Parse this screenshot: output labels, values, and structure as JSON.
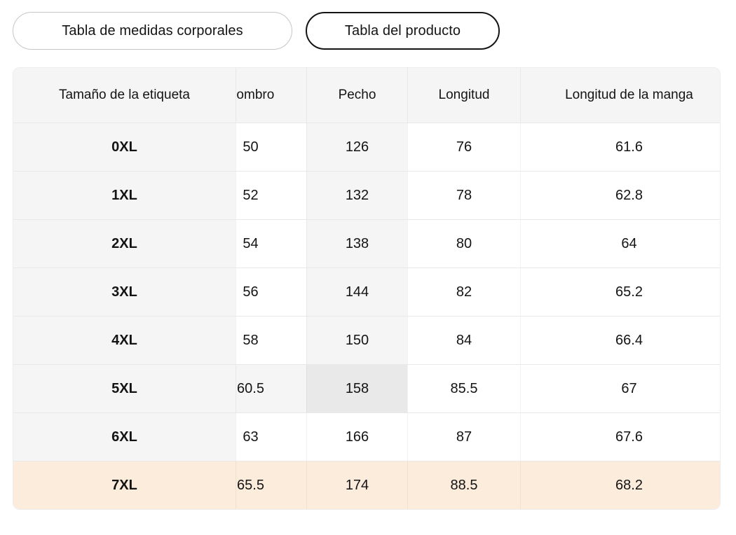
{
  "tabs": {
    "body_measurements": "Tabla de medidas corporales",
    "product": "Tabla del producto"
  },
  "table": {
    "columns": [
      "Tamaño de la etiqueta",
      "Hombro",
      "Pecho",
      "Longitud",
      "Longitud de la manga"
    ],
    "rows": [
      {
        "label": "0XL",
        "values": [
          "50",
          "126",
          "76",
          "61.6"
        ]
      },
      {
        "label": "1XL",
        "values": [
          "52",
          "132",
          "78",
          "62.8"
        ]
      },
      {
        "label": "2XL",
        "values": [
          "54",
          "138",
          "80",
          "64"
        ]
      },
      {
        "label": "3XL",
        "values": [
          "56",
          "144",
          "82",
          "65.2"
        ]
      },
      {
        "label": "4XL",
        "values": [
          "58",
          "150",
          "84",
          "66.4"
        ]
      },
      {
        "label": "5XL",
        "values": [
          "60.5",
          "158",
          "85.5",
          "67"
        ]
      },
      {
        "label": "6XL",
        "values": [
          "63",
          "166",
          "87",
          "67.6"
        ]
      },
      {
        "label": "7XL",
        "values": [
          "65.5",
          "174",
          "88.5",
          "68.2"
        ]
      }
    ]
  },
  "state": {
    "selected_tab": "Tabla del producto",
    "highlighted_row": "7XL",
    "hovered_cell": {
      "row": "5XL",
      "column": "Pecho",
      "value": "158"
    }
  },
  "colors": {
    "gray": "#f5f5f6",
    "hot": "#e9e9e9",
    "peach": "#fcecdc",
    "hline": "#e8e8e8",
    "border": "#ededed",
    "text": "#141414",
    "tab_border": "#c6c6c6"
  }
}
